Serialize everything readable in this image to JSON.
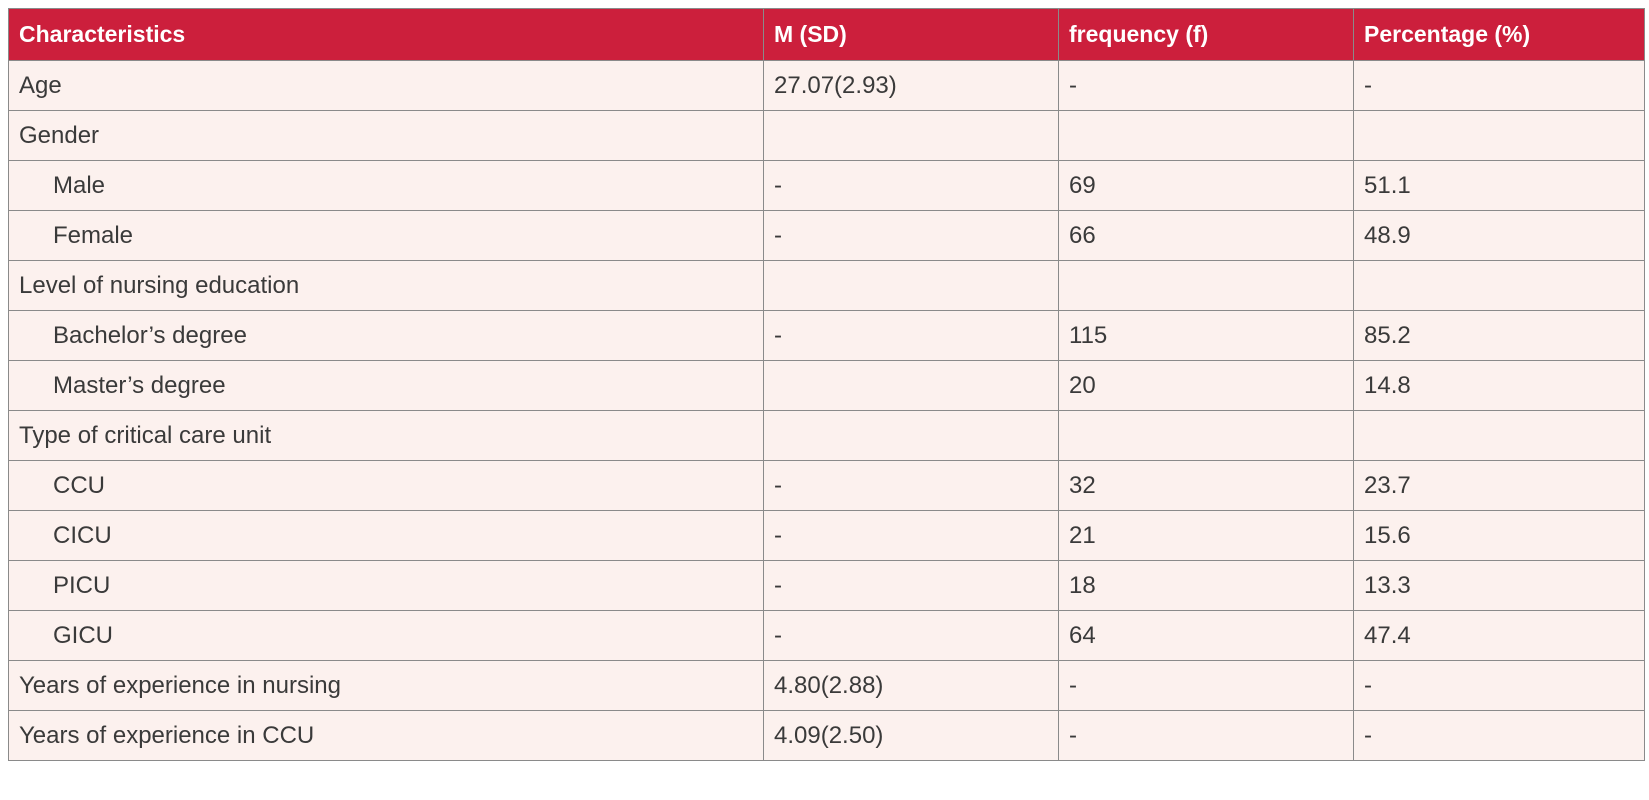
{
  "table": {
    "headers": [
      "Characteristics",
      "M (SD)",
      "frequency (f)",
      "Percentage (%)"
    ],
    "rows": [
      {
        "label": "Age",
        "indent": false,
        "msd": "27.07(2.93)",
        "freq": "-",
        "pct": "-"
      },
      {
        "label": "Gender",
        "indent": false,
        "msd": "",
        "freq": "",
        "pct": ""
      },
      {
        "label": "Male",
        "indent": true,
        "msd": "-",
        "freq": "69",
        "pct": "51.1"
      },
      {
        "label": "Female",
        "indent": true,
        "msd": "-",
        "freq": "66",
        "pct": "48.9"
      },
      {
        "label": "Level of nursing education",
        "indent": false,
        "msd": "",
        "freq": "",
        "pct": ""
      },
      {
        "label": "Bachelor’s degree",
        "indent": true,
        "msd": "-",
        "freq": "115",
        "pct": "85.2"
      },
      {
        "label": "Master’s degree",
        "indent": true,
        "msd": "",
        "freq": "20",
        "pct": "14.8"
      },
      {
        "label": "Type of critical care unit",
        "indent": false,
        "msd": "",
        "freq": "",
        "pct": ""
      },
      {
        "label": "CCU",
        "indent": true,
        "msd": "-",
        "freq": "32",
        "pct": "23.7"
      },
      {
        "label": "CICU",
        "indent": true,
        "msd": "-",
        "freq": "21",
        "pct": "15.6"
      },
      {
        "label": "PICU",
        "indent": true,
        "msd": "-",
        "freq": "18",
        "pct": "13.3"
      },
      {
        "label": "GICU",
        "indent": true,
        "msd": "-",
        "freq": "64",
        "pct": "47.4"
      },
      {
        "label": "Years of experience in nursing",
        "indent": false,
        "msd": "4.80(2.88)",
        "freq": "-",
        "pct": "-"
      },
      {
        "label": "Years of experience in CCU",
        "indent": false,
        "msd": "4.09(2.50)",
        "freq": "-",
        "pct": "-"
      }
    ]
  },
  "colors": {
    "header_bg": "#cc1f3c",
    "header_text": "#ffffff",
    "row_bg": "#fcf1ee",
    "border": "#8a8a8a"
  }
}
